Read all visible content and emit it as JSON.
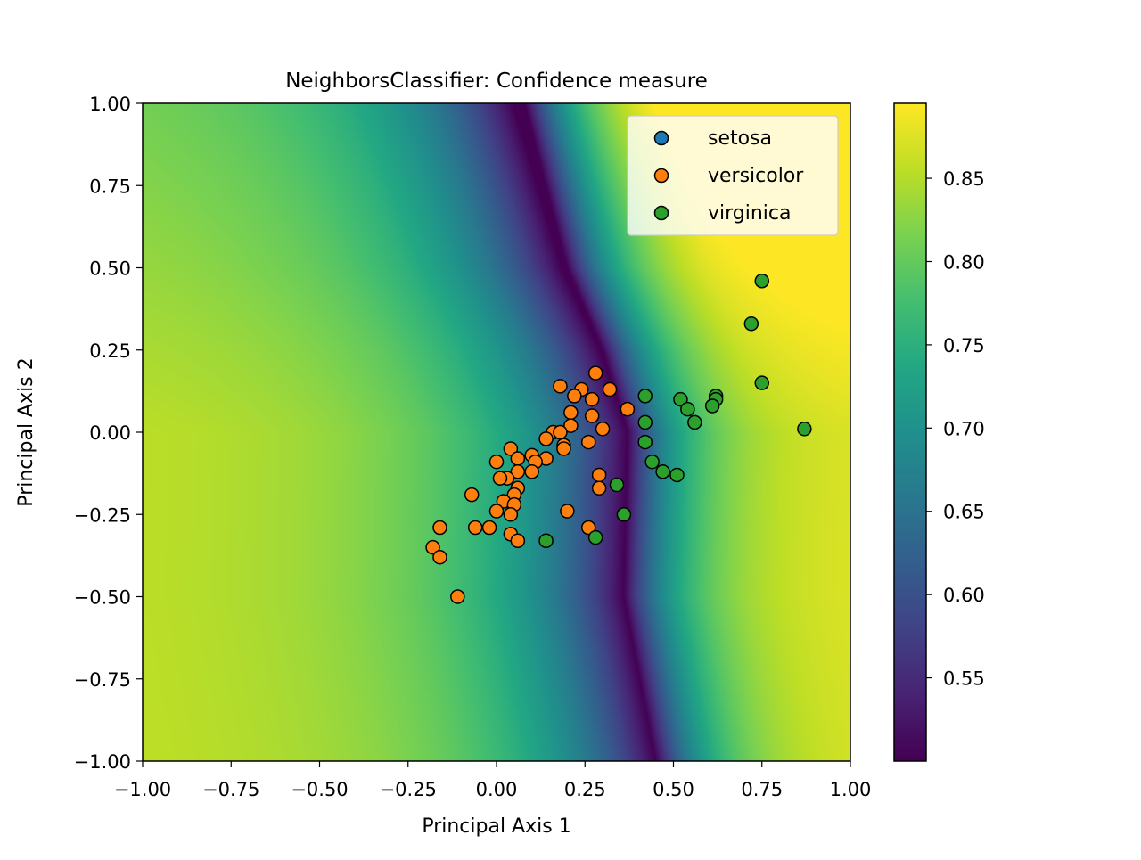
{
  "chart_data": {
    "type": "scatter",
    "title": "NeighborsClassifier: Confidence measure",
    "xlabel": "Principal Axis 1",
    "ylabel": "Principal Axis 2",
    "xlim": [
      -1.0,
      1.0
    ],
    "ylim": [
      -1.0,
      1.0
    ],
    "x_ticks": [
      -1.0,
      -0.75,
      -0.5,
      -0.25,
      0.0,
      0.25,
      0.5,
      0.75,
      1.0
    ],
    "y_ticks": [
      -1.0,
      -0.75,
      -0.5,
      -0.25,
      0.0,
      0.25,
      0.5,
      0.75,
      1.0
    ],
    "x_tick_labels": [
      "−1.00",
      "−0.75",
      "−0.50",
      "−0.25",
      "0.00",
      "0.25",
      "0.50",
      "0.75",
      "1.00"
    ],
    "y_tick_labels": [
      "−1.00",
      "−0.75",
      "−0.50",
      "−0.25",
      "0.00",
      "0.25",
      "0.50",
      "0.75",
      "1.00"
    ],
    "grid": false,
    "legend_position": "top-right",
    "background": {
      "type": "heatmap",
      "colormap": "viridis",
      "description_of_field": "confidence",
      "decision_boundary_x_at_y": [
        [
          1.0,
          0.08
        ],
        [
          0.5,
          0.2
        ],
        [
          0.25,
          0.3
        ],
        [
          0.0,
          0.37
        ],
        [
          -0.5,
          0.36
        ],
        [
          -1.0,
          0.45
        ]
      ]
    },
    "colorbar": {
      "vmin": 0.5,
      "vmax": 0.895,
      "ticks": [
        0.55,
        0.6,
        0.65,
        0.7,
        0.75,
        0.8,
        0.85
      ],
      "tick_labels": [
        "0.55",
        "0.60",
        "0.65",
        "0.70",
        "0.75",
        "0.80",
        "0.85"
      ]
    },
    "series": [
      {
        "name": "setosa",
        "color": "#1f77b4",
        "points": []
      },
      {
        "name": "versicolor",
        "color": "#ff7f0e",
        "points": [
          [
            0.28,
            0.18
          ],
          [
            0.18,
            0.14
          ],
          [
            0.24,
            0.13
          ],
          [
            0.32,
            0.13
          ],
          [
            0.22,
            0.11
          ],
          [
            0.27,
            0.1
          ],
          [
            0.37,
            0.07
          ],
          [
            0.21,
            0.06
          ],
          [
            0.27,
            0.05
          ],
          [
            0.21,
            0.02
          ],
          [
            0.3,
            0.01
          ],
          [
            0.16,
            0.0
          ],
          [
            0.18,
            0.0
          ],
          [
            0.14,
            -0.02
          ],
          [
            0.26,
            -0.03
          ],
          [
            0.19,
            -0.04
          ],
          [
            0.04,
            -0.05
          ],
          [
            0.19,
            -0.05
          ],
          [
            0.1,
            -0.07
          ],
          [
            0.14,
            -0.08
          ],
          [
            0.06,
            -0.08
          ],
          [
            0.11,
            -0.09
          ],
          [
            0.0,
            -0.09
          ],
          [
            0.1,
            -0.12
          ],
          [
            0.06,
            -0.12
          ],
          [
            0.03,
            -0.14
          ],
          [
            0.01,
            -0.14
          ],
          [
            0.29,
            -0.13
          ],
          [
            0.29,
            -0.17
          ],
          [
            0.06,
            -0.17
          ],
          [
            0.05,
            -0.19
          ],
          [
            -0.07,
            -0.19
          ],
          [
            0.02,
            -0.21
          ],
          [
            0.05,
            -0.22
          ],
          [
            0.0,
            -0.24
          ],
          [
            0.2,
            -0.24
          ],
          [
            0.04,
            -0.25
          ],
          [
            -0.06,
            -0.29
          ],
          [
            -0.02,
            -0.29
          ],
          [
            0.26,
            -0.29
          ],
          [
            -0.16,
            -0.29
          ],
          [
            0.04,
            -0.31
          ],
          [
            0.06,
            -0.33
          ],
          [
            -0.18,
            -0.35
          ],
          [
            -0.16,
            -0.38
          ],
          [
            -0.11,
            -0.5
          ]
        ]
      },
      {
        "name": "virginica",
        "color": "#2ca02c",
        "points": [
          [
            0.75,
            0.46
          ],
          [
            0.72,
            0.33
          ],
          [
            0.75,
            0.15
          ],
          [
            0.42,
            0.11
          ],
          [
            0.62,
            0.11
          ],
          [
            0.62,
            0.1
          ],
          [
            0.52,
            0.1
          ],
          [
            0.61,
            0.08
          ],
          [
            0.54,
            0.07
          ],
          [
            0.42,
            0.03
          ],
          [
            0.56,
            0.03
          ],
          [
            0.87,
            0.01
          ],
          [
            0.42,
            -0.03
          ],
          [
            0.44,
            -0.09
          ],
          [
            0.47,
            -0.12
          ],
          [
            0.51,
            -0.13
          ],
          [
            0.34,
            -0.16
          ],
          [
            0.36,
            -0.25
          ],
          [
            0.28,
            -0.32
          ],
          [
            0.14,
            -0.33
          ]
        ]
      }
    ]
  }
}
